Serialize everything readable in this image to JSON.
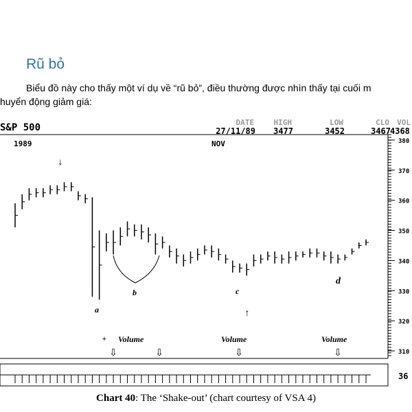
{
  "heading": "Rũ bỏ",
  "paragraph": [
    "Biểu đồ này cho thấy một ví dụ về “rũ bỏ”, điều thường được nhìn thấy tại cuối m",
    "huyển động giảm giá:"
  ],
  "chart_data": {
    "type": "ohlc",
    "title": "S&P 500",
    "header": [
      {
        "label": "DATE",
        "value": "27/11/89"
      },
      {
        "label": "HIGH",
        "value": "3477"
      },
      {
        "label": "LOW",
        "value": "3452"
      },
      {
        "label": "CLO",
        "value": "3467"
      },
      {
        "label": "VOL",
        "value": "4368"
      }
    ],
    "year": "1989",
    "month": "NOV",
    "high": [
      359,
      362,
      364,
      364,
      364,
      365,
      365,
      366,
      366,
      363,
      362,
      361,
      350,
      349,
      350,
      351,
      353,
      352,
      352,
      351,
      349,
      348,
      345,
      344,
      342,
      343,
      344,
      345,
      345,
      344,
      342,
      340,
      339,
      339,
      342,
      342,
      343,
      343,
      342,
      343,
      343,
      343,
      344,
      344,
      343,
      343,
      342,
      342,
      344,
      346,
      347
    ],
    "low": [
      351,
      357,
      360,
      361,
      361,
      362,
      362,
      363,
      363,
      360,
      359,
      328,
      327,
      343,
      342,
      345,
      348,
      348,
      347,
      346,
      342,
      344,
      341,
      339,
      338,
      339,
      340,
      342,
      341,
      340,
      339,
      336,
      336,
      335,
      338,
      339,
      340,
      339,
      339,
      339,
      340,
      341,
      341,
      341,
      340,
      339,
      339,
      340,
      342,
      344,
      345
    ],
    "ylim": [
      307.5,
      381.8
    ],
    "yticks": [
      310,
      320,
      330,
      340,
      350,
      360,
      370,
      380
    ],
    "annotations": [
      "a",
      "b",
      "c",
      "d"
    ],
    "volume_labels": [
      "Volume",
      "Volume",
      "Volume"
    ],
    "volume_axis_label": "36",
    "caption_label": "Chart 40",
    "caption_text": ": The ‘Shake-out’ (chart courtesy of VSA 4)"
  }
}
